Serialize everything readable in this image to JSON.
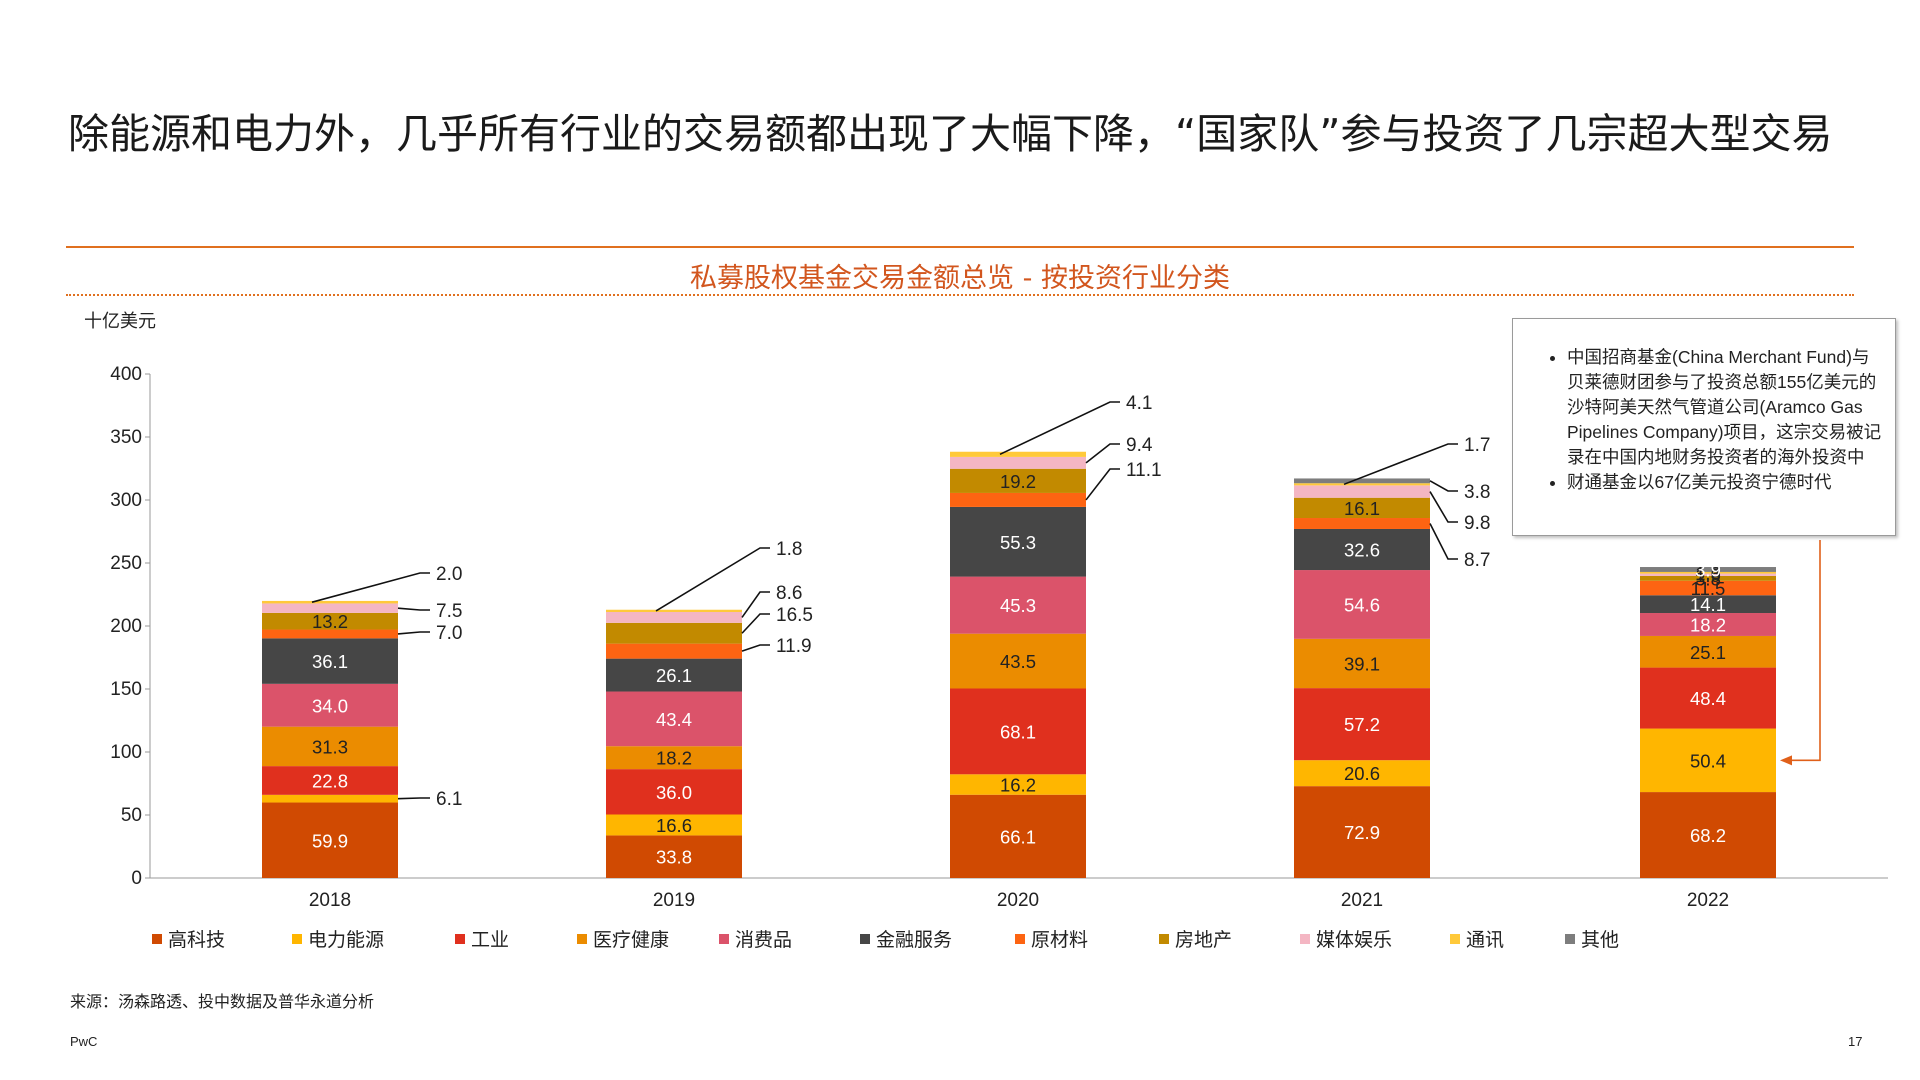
{
  "page": {
    "title": "除能源和电力外，几乎所有行业的交易额都出现了大幅下降，“国家队”参与投资了几宗超大型交易",
    "chart_title": "私募股权基金交易金额总览 - 按投资行业分类",
    "y_unit": "十亿美元",
    "source": "来源：汤森路透、投中数据及普华永道分析",
    "footer_left": "PwC",
    "page_number": "17"
  },
  "note": {
    "bullets": [
      "中国招商基金(China Merchant Fund)与贝莱德财团参与了投资总额155亿美元的沙特阿美天然气管道公司(Aramco Gas Pipelines Company)项目，这宗交易被记录在中国内地财务投资者的海外投资中",
      "财通基金以67亿美元投资宁德时代"
    ]
  },
  "chart_data": {
    "type": "bar",
    "stacked": true,
    "categories": [
      "2018",
      "2019",
      "2020",
      "2021",
      "2022"
    ],
    "ylim": [
      0,
      400
    ],
    "yticks": [
      0,
      50,
      100,
      150,
      200,
      250,
      300,
      350,
      400
    ],
    "legend_position": "bottom",
    "series": [
      {
        "name": "高科技",
        "color": "#d04a02",
        "values": [
          59.9,
          33.8,
          66.1,
          72.9,
          68.2
        ]
      },
      {
        "name": "电力能源",
        "color": "#ffb600",
        "values": [
          6.1,
          16.6,
          16.2,
          20.6,
          50.4
        ]
      },
      {
        "name": "工业",
        "color": "#e0301e",
        "values": [
          22.8,
          36.0,
          68.1,
          57.2,
          48.4
        ]
      },
      {
        "name": "医疗健康",
        "color": "#eb8c00",
        "values": [
          31.3,
          18.2,
          43.5,
          39.1,
          25.1
        ]
      },
      {
        "name": "消费品",
        "color": "#db536a",
        "values": [
          34.0,
          43.4,
          45.3,
          54.6,
          18.2
        ]
      },
      {
        "name": "金融服务",
        "color": "#464646",
        "values": [
          36.1,
          26.1,
          55.3,
          32.6,
          14.1
        ]
      },
      {
        "name": "原材料",
        "color": "#fd6412",
        "values": [
          7.0,
          11.9,
          11.1,
          8.7,
          11.5
        ]
      },
      {
        "name": "房地产",
        "color": "#c28a00",
        "values": [
          13.2,
          16.5,
          19.2,
          16.1,
          3.8
        ]
      },
      {
        "name": "媒体娱乐",
        "color": "#f4b6c3",
        "values": [
          7.5,
          8.6,
          9.4,
          9.8,
          1.9
        ]
      },
      {
        "name": "通讯",
        "color": "#ffc93a",
        "values": [
          2.0,
          1.8,
          4.1,
          1.7,
          1.3
        ]
      },
      {
        "name": "其他",
        "color": "#7d7d7d",
        "values": [
          0,
          0,
          0,
          3.8,
          3.9
        ]
      }
    ],
    "inside_labels": [
      {
        "category": "2018",
        "values": [
          "59.9",
          null,
          "22.8",
          "31.3",
          "34.0",
          "36.1",
          null,
          "13.2",
          null,
          null,
          null
        ]
      },
      {
        "category": "2019",
        "values": [
          "33.8",
          "16.6",
          "36.0",
          "18.2",
          "43.4",
          "26.1",
          null,
          null,
          null,
          null,
          null
        ]
      },
      {
        "category": "2020",
        "values": [
          "66.1",
          "16.2",
          "68.1",
          "43.5",
          "45.3",
          "55.3",
          null,
          "19.2",
          null,
          null,
          null
        ]
      },
      {
        "category": "2021",
        "values": [
          "72.9",
          "20.6",
          "57.2",
          "39.1",
          "54.6",
          "32.6",
          null,
          "16.1",
          null,
          null,
          null
        ]
      },
      {
        "category": "2022",
        "values": [
          "68.2",
          "50.4",
          "48.4",
          "25.1",
          "18.2",
          "14.1",
          "11.5",
          "3.8",
          "1.9",
          "1.3",
          "3.9"
        ]
      }
    ],
    "callouts": [
      {
        "category": "2018",
        "series": "电力能源",
        "text": "6.1"
      },
      {
        "category": "2018",
        "series": "原材料",
        "text": "7.0"
      },
      {
        "category": "2018",
        "series": "媒体娱乐",
        "text": "7.5"
      },
      {
        "category": "2018",
        "series": "通讯",
        "text": "2.0"
      },
      {
        "category": "2019",
        "series": "原材料",
        "text": "11.9"
      },
      {
        "category": "2019",
        "series": "房地产",
        "text": "16.5"
      },
      {
        "category": "2019",
        "series": "媒体娱乐",
        "text": "8.6"
      },
      {
        "category": "2019",
        "series": "通讯",
        "text": "1.8"
      },
      {
        "category": "2020",
        "series": "原材料",
        "text": "11.1"
      },
      {
        "category": "2020",
        "series": "媒体娱乐",
        "text": "9.4"
      },
      {
        "category": "2020",
        "series": "通讯",
        "text": "4.1"
      },
      {
        "category": "2021",
        "series": "原材料",
        "text": "8.7"
      },
      {
        "category": "2021",
        "series": "媒体娱乐",
        "text": "9.8"
      },
      {
        "category": "2021",
        "series": "其他",
        "text": "3.8"
      },
      {
        "category": "2021",
        "series": "通讯",
        "text": "1.7"
      }
    ]
  }
}
